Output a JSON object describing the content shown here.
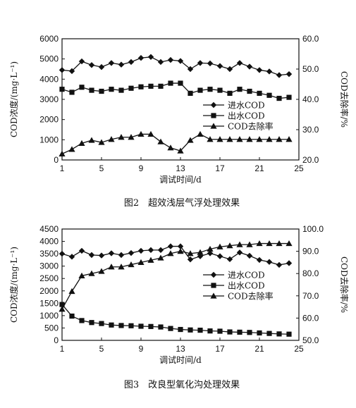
{
  "chart_data": [
    {
      "type": "line",
      "caption": "图2　超效浅层气浮处理效果",
      "xlabel": "调试时间/d",
      "ylabel": "COD浓度/(mg·L⁻¹)",
      "y2label": "COD去除率/%",
      "x": [
        1,
        2,
        3,
        4,
        5,
        6,
        7,
        8,
        9,
        10,
        11,
        12,
        13,
        14,
        15,
        16,
        17,
        18,
        19,
        20,
        21,
        22,
        23,
        24
      ],
      "xlim": [
        1,
        25
      ],
      "xticks": [
        "1",
        "5",
        "9",
        "13",
        "17",
        "21",
        "25"
      ],
      "ylim": [
        0,
        6000
      ],
      "yticks": [
        "0",
        "1000",
        "2000",
        "3000",
        "4000",
        "5000",
        "6000"
      ],
      "y2lim": [
        20,
        60
      ],
      "y2ticks": [
        "20.0",
        "30.0",
        "40.0",
        "50.0",
        "60.0"
      ],
      "legend": [
        "进水COD",
        "出水COD",
        "COD去除率"
      ],
      "series": [
        {
          "name": "进水COD",
          "axis": "left",
          "marker": "diamond",
          "values": [
            4450,
            4400,
            4880,
            4700,
            4600,
            4800,
            4720,
            4850,
            5050,
            5100,
            4850,
            4950,
            4900,
            4500,
            4800,
            4780,
            4650,
            4500,
            4800,
            4620,
            4450,
            4380,
            4200,
            4250
          ]
        },
        {
          "name": "出水COD",
          "axis": "left",
          "marker": "square",
          "values": [
            3500,
            3350,
            3600,
            3450,
            3400,
            3500,
            3450,
            3550,
            3620,
            3650,
            3650,
            3800,
            3800,
            3300,
            3450,
            3500,
            3450,
            3300,
            3500,
            3400,
            3300,
            3200,
            3050,
            3100
          ]
        },
        {
          "name": "COD去除率",
          "axis": "right",
          "marker": "triangle",
          "values": [
            22.0,
            23.5,
            25.5,
            26.5,
            25.8,
            26.8,
            27.5,
            27.5,
            28.5,
            28.5,
            26.0,
            24.0,
            23.0,
            26.5,
            28.5,
            26.8,
            26.8,
            26.8,
            26.8,
            26.8,
            26.8,
            26.8,
            26.8,
            26.8
          ]
        }
      ]
    },
    {
      "type": "line",
      "caption": "图3　改良型氧化沟处理效果",
      "xlabel": "调试时间/d",
      "ylabel": "COD浓度/(mg·L⁻¹)",
      "y2label": "COD去除率/%",
      "x": [
        1,
        2,
        3,
        4,
        5,
        6,
        7,
        8,
        9,
        10,
        11,
        12,
        13,
        14,
        15,
        16,
        17,
        18,
        19,
        20,
        21,
        22,
        23,
        24
      ],
      "xlim": [
        1,
        25
      ],
      "xticks": [
        "1",
        "5",
        "9",
        "13",
        "17",
        "21",
        "25"
      ],
      "ylim": [
        0,
        4500
      ],
      "yticks": [
        "0",
        "500",
        "1000",
        "1500",
        "2000",
        "2500",
        "3000",
        "3500",
        "4000",
        "4500"
      ],
      "y2lim": [
        50,
        100
      ],
      "y2ticks": [
        "50.0",
        "60.0",
        "70.0",
        "80.0",
        "90.0",
        "100.0"
      ],
      "legend": [
        "进水COD",
        "出水COD",
        "COD去除率"
      ],
      "series": [
        {
          "name": "进水COD",
          "axis": "left",
          "marker": "diamond",
          "values": [
            3500,
            3380,
            3620,
            3450,
            3430,
            3520,
            3450,
            3530,
            3620,
            3650,
            3650,
            3800,
            3800,
            3270,
            3400,
            3520,
            3400,
            3280,
            3550,
            3420,
            3250,
            3170,
            3050,
            3120
          ]
        },
        {
          "name": "出水COD",
          "axis": "left",
          "marker": "square",
          "values": [
            1450,
            980,
            800,
            720,
            680,
            620,
            600,
            590,
            570,
            560,
            540,
            480,
            440,
            420,
            410,
            380,
            370,
            340,
            330,
            320,
            300,
            280,
            260,
            250
          ]
        },
        {
          "name": "COD去除率",
          "axis": "right",
          "marker": "triangle",
          "values": [
            64.0,
            72.0,
            79.0,
            80.0,
            81.0,
            83.0,
            83.0,
            84.0,
            85.0,
            86.0,
            87.0,
            89.0,
            90.0,
            89.0,
            89.5,
            91.0,
            92.0,
            92.5,
            93.0,
            93.0,
            93.5,
            93.5,
            93.5,
            93.5
          ]
        }
      ]
    }
  ]
}
